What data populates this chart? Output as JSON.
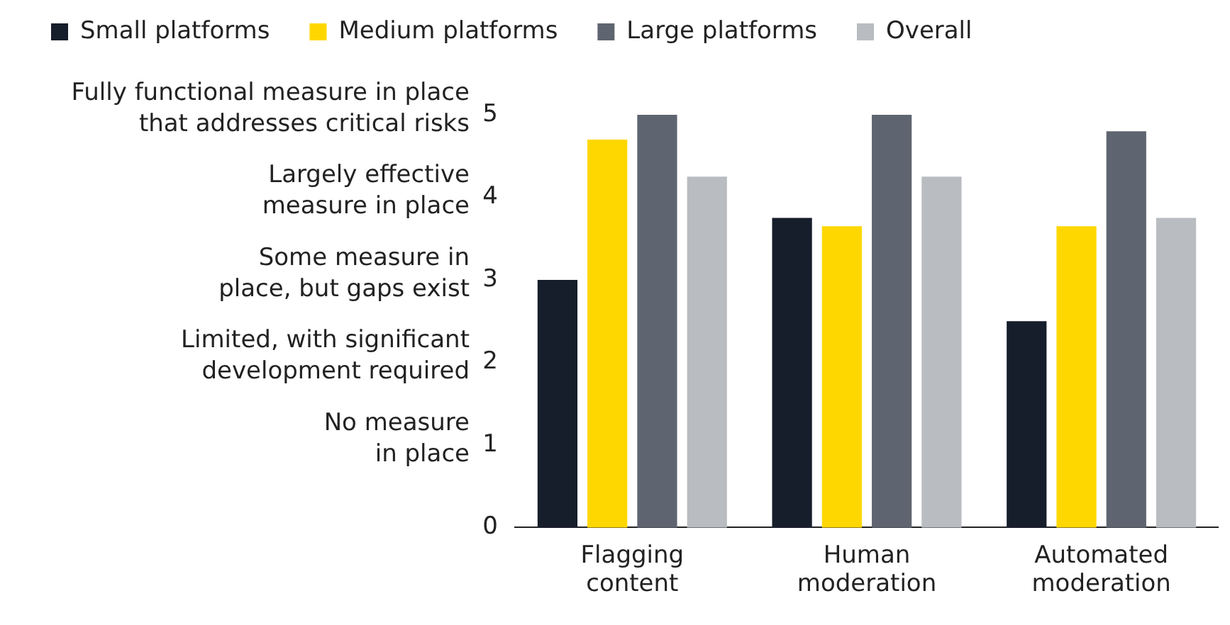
{
  "chart_data": {
    "type": "bar",
    "categories": [
      "Flagging\ncontent",
      "Human\nmoderation",
      "Automated\nmoderation"
    ],
    "series": [
      {
        "name": "Small platforms",
        "color": "#161d2b",
        "values": [
          3,
          3.75,
          2.5
        ]
      },
      {
        "name": "Medium platforms",
        "color": "#ffd700",
        "values": [
          4.7,
          3.65,
          3.65
        ]
      },
      {
        "name": "Large platforms",
        "color": "#5f6570",
        "values": [
          5,
          5,
          4.8
        ]
      },
      {
        "name": "Overall",
        "color": "#b9bcc0",
        "values": [
          4.25,
          4.25,
          3.75
        ]
      }
    ],
    "ylim": [
      0,
      5
    ],
    "yticks": [
      0,
      1,
      2,
      3,
      4,
      5
    ],
    "grid": false,
    "legend": "top left",
    "annotations": [
      "No measure\nin place",
      "Limited, with significant\ndevelopment required",
      "Some measure in\nplace, but gaps exist",
      "Largely effective\nmeasure in place",
      "Fully functional measure in place\nthat addresses critical risks"
    ]
  }
}
